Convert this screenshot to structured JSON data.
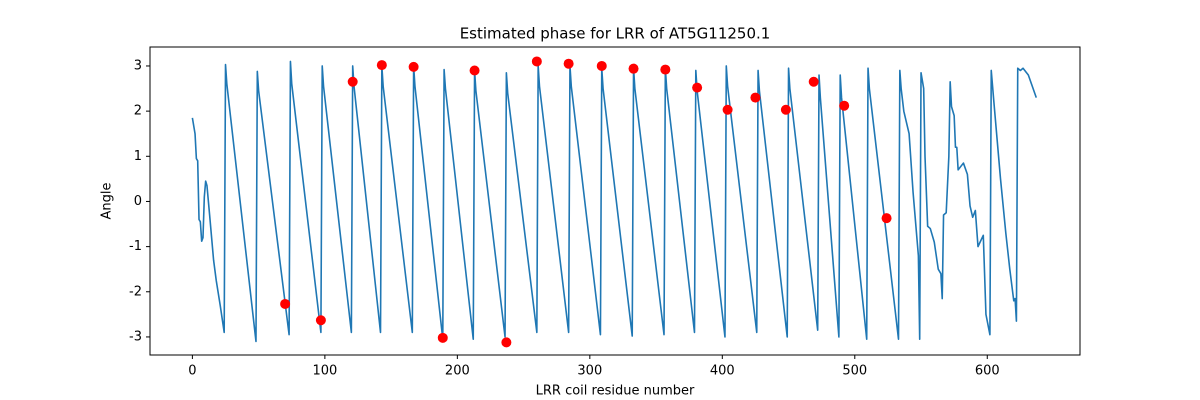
{
  "chart_data": {
    "type": "line",
    "title": "Estimated phase for LRR of AT5G11250.1",
    "x_label": "LRR coil residue number",
    "y_label": "Angle",
    "xlim": [
      -32,
      670
    ],
    "ylim": [
      -3.4,
      3.42
    ],
    "xticks": [
      0,
      100,
      200,
      300,
      400,
      500,
      600
    ],
    "yticks": [
      -3,
      -2,
      -1,
      0,
      1,
      2,
      3
    ],
    "series": [
      {
        "type": "line",
        "color": "#1f77b4",
        "x": [
          0,
          2,
          3,
          4,
          5,
          6,
          7,
          8,
          9,
          10,
          11,
          13,
          16,
          18,
          21,
          24,
          25,
          26,
          48,
          49,
          50,
          73,
          74,
          75,
          97,
          98,
          99,
          120,
          121,
          122,
          142,
          143,
          144,
          166,
          167,
          168,
          189,
          190,
          191,
          212,
          213,
          214,
          236,
          237,
          238,
          260,
          261,
          262,
          284,
          285,
          286,
          308,
          309,
          310,
          332,
          333,
          334,
          356,
          357,
          358,
          379,
          380,
          381,
          402,
          403,
          404,
          426,
          427,
          428,
          449,
          450,
          451,
          472,
          473,
          474,
          488,
          489,
          490,
          509,
          510,
          511,
          533,
          534,
          535,
          537,
          541,
          544,
          548,
          549,
          550,
          552,
          553,
          555,
          557,
          560,
          563,
          565,
          566,
          567,
          569,
          571,
          572,
          573,
          575,
          576,
          577,
          578,
          582,
          585,
          587,
          589,
          591,
          593,
          597,
          599,
          602,
          603,
          605,
          610,
          614,
          617,
          620,
          621,
          622,
          623,
          625,
          627,
          631,
          637
        ],
        "values": [
          1.85,
          1.5,
          0.95,
          0.9,
          -0.4,
          -0.45,
          -0.88,
          -0.8,
          0.1,
          0.45,
          0.35,
          -0.3,
          -1.3,
          -1.75,
          -2.3,
          -2.9,
          3.03,
          2.6,
          -3.1,
          2.88,
          2.45,
          -2.95,
          3.1,
          2.6,
          -2.9,
          3.0,
          2.55,
          -2.9,
          3.0,
          2.55,
          -2.9,
          3.0,
          2.55,
          -2.9,
          3.0,
          2.55,
          -3.05,
          2.92,
          2.5,
          -3.05,
          2.9,
          2.45,
          -3.0,
          2.85,
          2.4,
          -2.9,
          3.0,
          2.55,
          -2.9,
          3.0,
          2.55,
          -2.95,
          2.95,
          2.5,
          -2.98,
          2.95,
          2.5,
          -2.95,
          2.95,
          2.5,
          -2.9,
          2.9,
          2.45,
          -3.0,
          3.0,
          2.55,
          -2.9,
          2.9,
          2.45,
          -3.0,
          2.95,
          2.5,
          -2.85,
          2.8,
          2.3,
          -3.0,
          2.8,
          2.3,
          -3.05,
          2.95,
          2.5,
          -3.05,
          2.9,
          2.5,
          2.0,
          1.5,
          0.2,
          -1.2,
          -3.05,
          2.85,
          2.5,
          1.0,
          -0.55,
          -0.6,
          -0.9,
          -1.5,
          -1.6,
          -2.15,
          -0.3,
          -0.25,
          1.0,
          2.65,
          2.1,
          1.9,
          1.2,
          1.2,
          0.7,
          0.85,
          0.6,
          -0.1,
          -0.35,
          -0.2,
          -1.0,
          -0.75,
          -2.5,
          -2.95,
          2.9,
          2.2,
          0.5,
          -0.7,
          -1.5,
          -2.2,
          -2.15,
          -2.65,
          2.95,
          2.9,
          2.95,
          2.8,
          2.3
        ]
      },
      {
        "type": "scatter",
        "color": "#ff0000",
        "x": [
          70,
          97,
          121,
          143,
          167,
          189,
          213,
          237,
          260,
          284,
          309,
          333,
          357,
          381,
          404,
          425,
          448,
          469,
          492,
          524
        ],
        "values": [
          -2.27,
          -2.63,
          2.65,
          3.02,
          2.98,
          -3.02,
          2.9,
          -3.12,
          3.1,
          3.05,
          3.0,
          2.94,
          2.92,
          2.52,
          2.03,
          2.3,
          2.03,
          2.65,
          2.12,
          -0.37
        ]
      }
    ]
  }
}
